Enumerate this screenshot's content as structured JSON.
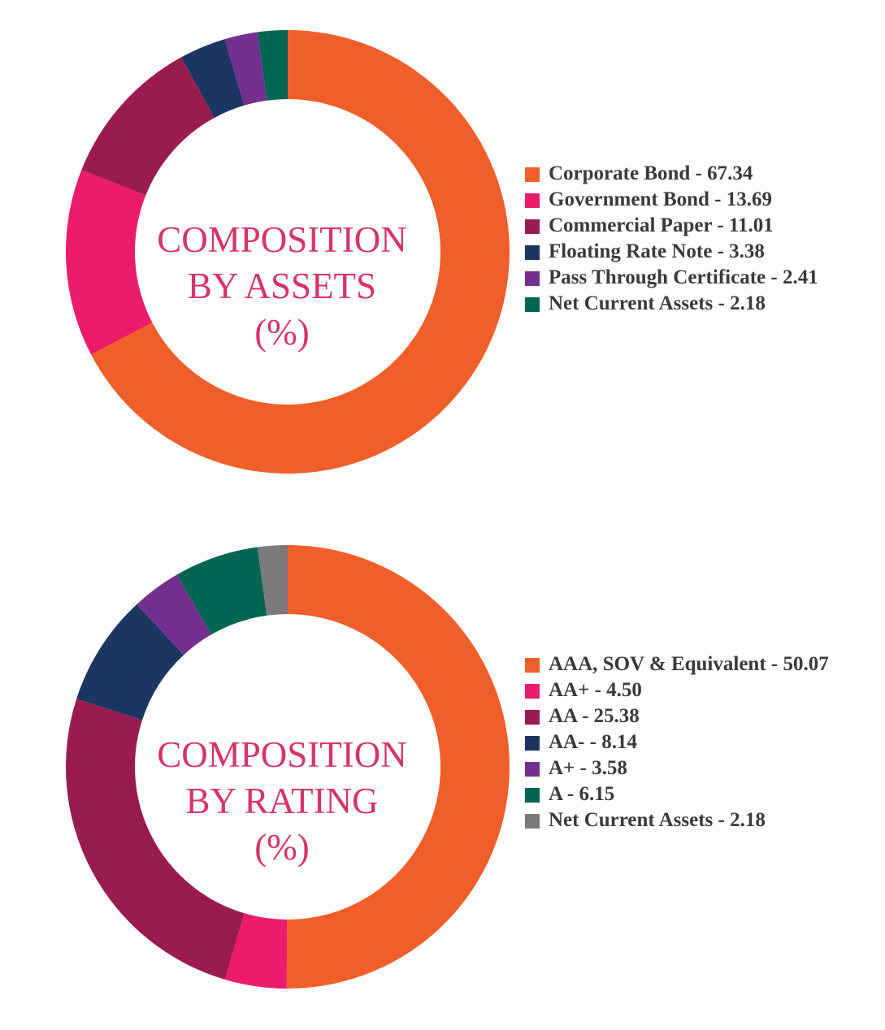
{
  "chart_data": [
    {
      "type": "pie",
      "variant": "donut",
      "center_title": [
        "COMPOSITION",
        "BY ASSETS",
        "(%)"
      ],
      "start_angle": "12 o'clock, clockwise",
      "legend_position": "right",
      "series": [
        {
          "label": "Corporate Bond",
          "value": 67.34,
          "color": "#f05f2a",
          "legend": "Corporate Bond - 67.34"
        },
        {
          "label": "Government Bond",
          "value": 13.69,
          "color": "#ec1c6a",
          "legend": "Government Bond - 13.69"
        },
        {
          "label": "Commercial Paper",
          "value": 11.01,
          "color": "#9a1b4e",
          "legend": "Commercial Paper - 11.01"
        },
        {
          "label": "Floating Rate Note",
          "value": 3.38,
          "color": "#1c3662",
          "legend": "Floating Rate Note - 3.38"
        },
        {
          "label": "Pass Through Certificate",
          "value": 2.41,
          "color": "#73308f",
          "legend": "Pass Through Certificate - 2.41"
        },
        {
          "label": "Net Current Assets",
          "value": 2.18,
          "color": "#006652",
          "legend": "Net Current Assets - 2.18"
        }
      ]
    },
    {
      "type": "pie",
      "variant": "donut",
      "center_title": [
        "COMPOSITION",
        "BY RATING",
        "(%)"
      ],
      "start_angle": "12 o'clock, clockwise",
      "legend_position": "right",
      "series": [
        {
          "label": "AAA, SOV & Equivalent",
          "value": 50.07,
          "color": "#f05f2a",
          "legend": "AAA, SOV & Equivalent - 50.07"
        },
        {
          "label": "AA+",
          "value": 4.5,
          "color": "#ec1c6a",
          "legend": "AA+ - 4.50"
        },
        {
          "label": "AA",
          "value": 25.38,
          "color": "#9a1b4e",
          "legend": "AA - 25.38"
        },
        {
          "label": "AA-",
          "value": 8.14,
          "color": "#1c3662",
          "legend": "AA- - 8.14"
        },
        {
          "label": "A+",
          "value": 3.58,
          "color": "#73308f",
          "legend": "A+ - 3.58"
        },
        {
          "label": "A",
          "value": 6.15,
          "color": "#006652",
          "legend": "A - 6.15"
        },
        {
          "label": "Net Current Assets",
          "value": 2.18,
          "color": "#7a7a7a",
          "legend": "Net Current Assets - 2.18"
        }
      ]
    }
  ]
}
